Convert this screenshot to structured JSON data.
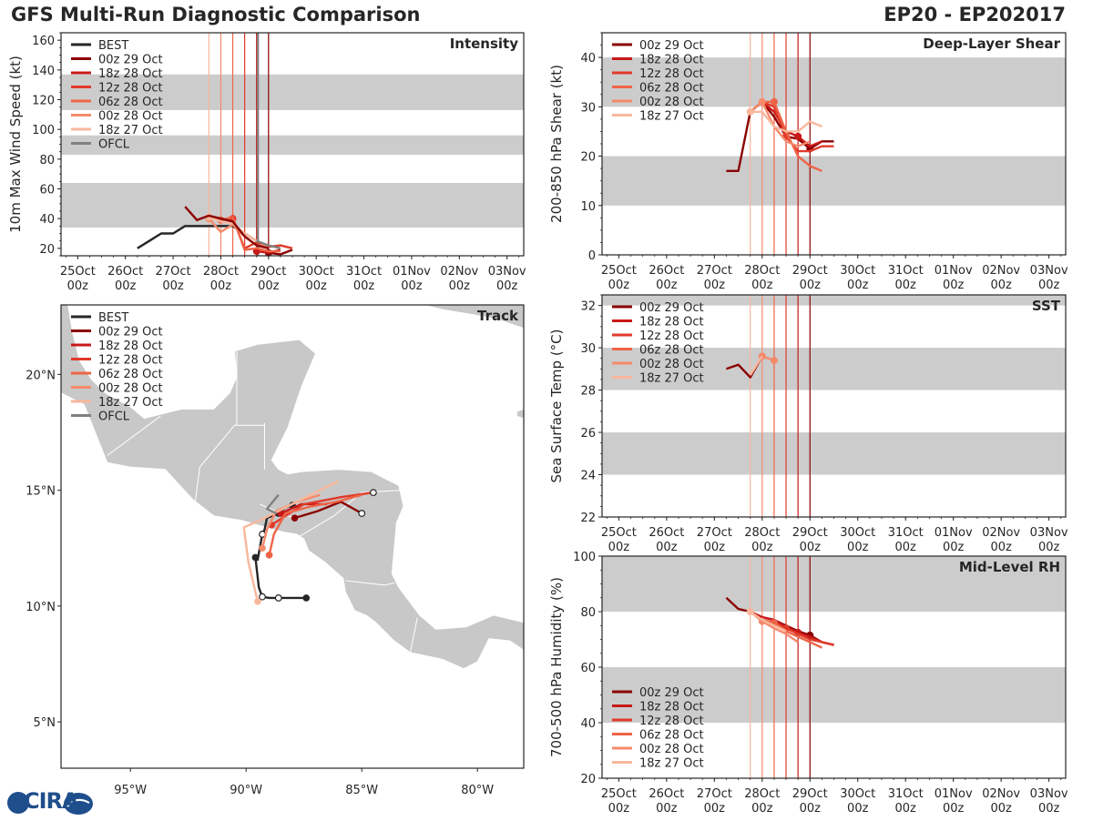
{
  "header": {
    "title_left": "GFS Multi-Run Diagnostic Comparison",
    "title_right": "EP20 - EP202017"
  },
  "logo": {
    "text": "CIRA"
  },
  "colors": {
    "best": "#262626",
    "ofcl": "#808080",
    "runs": [
      "#8b0000",
      "#c81818",
      "#e03a2a",
      "#ef6446",
      "#f58a6b",
      "#f9b79c"
    ],
    "band": "#cccccc"
  },
  "runs": [
    "00z 29 Oct",
    "18z 28 Oct",
    "12z 28 Oct",
    "06z 28 Oct",
    "00z 28 Oct",
    "18z 27 Oct"
  ],
  "time_ticks": [
    {
      "d": 0,
      "l1": "25Oct",
      "l2": "00z"
    },
    {
      "d": 1,
      "l1": "26Oct",
      "l2": "00z"
    },
    {
      "d": 2,
      "l1": "27Oct",
      "l2": "00z"
    },
    {
      "d": 3,
      "l1": "28Oct",
      "l2": "00z"
    },
    {
      "d": 4,
      "l1": "29Oct",
      "l2": "00z"
    },
    {
      "d": 5,
      "l1": "30Oct",
      "l2": "00z"
    },
    {
      "d": 6,
      "l1": "31Oct",
      "l2": "00z"
    },
    {
      "d": 7,
      "l1": "01Nov",
      "l2": "00z"
    },
    {
      "d": 8,
      "l1": "02Nov",
      "l2": "00z"
    },
    {
      "d": 9,
      "l1": "03Nov",
      "l2": "00z"
    }
  ],
  "chart_data": [
    {
      "name": "intensity",
      "type": "line",
      "title": "Intensity",
      "ylabel": "10m Max Wind Speed (kt)",
      "xlabel": "",
      "xlim": [
        -0.35,
        9.35
      ],
      "ylim": [
        15,
        165
      ],
      "yticks": [
        20,
        40,
        60,
        80,
        100,
        120,
        140,
        160
      ],
      "bands": [
        [
          34,
          64
        ],
        [
          83,
          96
        ],
        [
          113,
          137
        ]
      ],
      "init_lines": [
        2.75,
        3.0,
        3.25,
        3.5,
        3.75,
        4.0
      ],
      "ofcl_line": 3.75,
      "legend": [
        "BEST",
        "00z 29 Oct",
        "18z 28 Oct",
        "12z 28 Oct",
        "06z 28 Oct",
        "00z 28 Oct",
        "18z 27 Oct",
        "OFCL"
      ],
      "series": [
        {
          "name": "BEST",
          "kind": "best",
          "x": [
            1.25,
            1.5,
            1.75,
            2.0,
            2.25,
            2.5,
            2.75,
            3.0,
            3.25,
            3.5,
            3.75,
            4.0
          ],
          "y": [
            20,
            25,
            30,
            30,
            35,
            35,
            35,
            35,
            35,
            30,
            25,
            20
          ],
          "markers": []
        },
        {
          "name": "00z 29 Oct",
          "kind": "run",
          "ci": 0,
          "x": [
            4.0,
            4.25,
            4.5
          ],
          "y": [
            17,
            16,
            19
          ],
          "markers": [
            4.0
          ]
        },
        {
          "name": "18z 28 Oct",
          "kind": "run",
          "ci": 1,
          "x": [
            3.75,
            4.0,
            4.25
          ],
          "y": [
            18,
            17,
            19
          ],
          "markers": [
            3.75
          ]
        },
        {
          "name": "12z 28 Oct",
          "kind": "run",
          "ci": 2,
          "x": [
            3.25,
            3.5,
            3.75,
            4.0,
            4.25,
            4.5
          ],
          "y": [
            40,
            20,
            24,
            21,
            22,
            20
          ],
          "markers": [
            3.25
          ]
        },
        {
          "name": "06z 28 Oct",
          "kind": "run",
          "ci": 3,
          "x": [
            3.0,
            3.25,
            3.5,
            3.75,
            4.0,
            4.25
          ],
          "y": [
            39,
            41,
            19,
            20,
            18,
            18
          ],
          "markers": [
            3.0
          ]
        },
        {
          "name": "00z 28 Oct",
          "kind": "run",
          "ci": 4,
          "x": [
            2.75,
            3.0,
            3.25,
            3.5,
            3.75,
            4.0
          ],
          "y": [
            40,
            31,
            36,
            28,
            22,
            22
          ],
          "markers": [
            2.75
          ]
        },
        {
          "name": "18z 27 Oct",
          "kind": "run",
          "ci": 5,
          "x": [
            2.75,
            3.0,
            3.25,
            3.5,
            3.75
          ],
          "y": [
            41,
            38,
            37,
            30,
            25
          ],
          "markers": [
            2.75
          ]
        },
        {
          "name": "early run",
          "kind": "run",
          "ci": 0,
          "x": [
            2.25,
            2.5,
            2.75,
            3.0,
            3.25,
            3.5,
            3.75,
            4.0
          ],
          "y": [
            48,
            39,
            42,
            40,
            38,
            28,
            22,
            20
          ],
          "markers": []
        },
        {
          "name": "OFCL",
          "kind": "ofcl",
          "x": [
            3.75,
            4.0,
            4.25
          ],
          "y": [
            25,
            22,
            20
          ],
          "markers": []
        }
      ]
    },
    {
      "name": "shear",
      "type": "line",
      "title": "Deep-Layer Shear",
      "ylabel": "200-850 hPa Shear (kt)",
      "xlabel": "",
      "xlim": [
        -0.35,
        9.35
      ],
      "ylim": [
        0,
        45
      ],
      "yticks": [
        0,
        10,
        20,
        30,
        40
      ],
      "bands": [
        [
          10,
          20
        ],
        [
          30,
          40
        ]
      ],
      "init_lines": [
        2.75,
        3.0,
        3.25,
        3.5,
        3.75,
        4.0
      ],
      "legend": [
        "00z 29 Oct",
        "18z 28 Oct",
        "12z 28 Oct",
        "06z 28 Oct",
        "00z 28 Oct",
        "18z 27 Oct"
      ],
      "series": [
        {
          "name": "00z 29 Oct",
          "kind": "run",
          "ci": 0,
          "x": [
            2.25,
            2.5,
            2.75,
            3.0,
            3.25,
            3.5,
            3.75,
            4.0,
            4.25,
            4.5
          ],
          "y": [
            17,
            17,
            29,
            31,
            28,
            24,
            23.5,
            21.5,
            23,
            23
          ],
          "markers": [
            4.0
          ]
        },
        {
          "name": "18z 28 Oct",
          "kind": "run",
          "ci": 1,
          "x": [
            2.75,
            3.0,
            3.25,
            3.5,
            3.75,
            4.0,
            4.25
          ],
          "y": [
            29,
            31,
            29,
            25,
            24,
            22,
            23
          ],
          "markers": [
            3.75
          ]
        },
        {
          "name": "12z 28 Oct",
          "kind": "run",
          "ci": 2,
          "x": [
            2.75,
            3.0,
            3.25,
            3.5,
            3.75,
            4.0,
            4.25,
            4.5
          ],
          "y": [
            29,
            31,
            30,
            24,
            21,
            21,
            22,
            22
          ],
          "markers": [
            3.5
          ]
        },
        {
          "name": "06z 28 Oct",
          "kind": "run",
          "ci": 3,
          "x": [
            3.0,
            3.25,
            3.5,
            3.75,
            4.0,
            4.25
          ],
          "y": [
            31,
            31,
            25,
            20,
            18,
            17
          ],
          "markers": [
            3.25
          ]
        },
        {
          "name": "00z 28 Oct",
          "kind": "run",
          "ci": 4,
          "x": [
            2.75,
            3.0,
            3.25,
            3.5,
            3.75,
            4.0
          ],
          "y": [
            29,
            31,
            26,
            23,
            22,
            23
          ],
          "markers": [
            3.0
          ]
        },
        {
          "name": "18z 27 Oct",
          "kind": "run",
          "ci": 5,
          "x": [
            2.75,
            3.0,
            3.25,
            3.5,
            3.75,
            4.0,
            4.25
          ],
          "y": [
            29,
            29,
            26,
            25,
            25,
            27,
            26
          ],
          "markers": [
            2.75
          ]
        }
      ]
    },
    {
      "name": "sst",
      "type": "line",
      "title": "SST",
      "ylabel": "Sea Surface Temp (°C)",
      "xlabel": "",
      "xlim": [
        -0.35,
        9.35
      ],
      "ylim": [
        22,
        32.5
      ],
      "yticks": [
        22,
        24,
        26,
        28,
        30,
        32
      ],
      "bands": [
        [
          24,
          26
        ],
        [
          28,
          30
        ],
        [
          32,
          34
        ]
      ],
      "init_lines": [
        2.75,
        3.0,
        3.25,
        3.5,
        3.75,
        4.0
      ],
      "legend": [
        "00z 29 Oct",
        "18z 28 Oct",
        "12z 28 Oct",
        "06z 28 Oct",
        "00z 28 Oct",
        "18z 27 Oct"
      ],
      "series": [
        {
          "name": "00z 29 Oct",
          "kind": "run",
          "ci": 0,
          "x": [
            2.25,
            2.5,
            2.75,
            3.0
          ],
          "y": [
            29.0,
            29.2,
            28.6,
            29.6
          ],
          "markers": []
        },
        {
          "name": "00z 28 Oct",
          "kind": "run",
          "ci": 4,
          "x": [
            3.0,
            3.25
          ],
          "y": [
            29.6,
            29.4
          ],
          "markers": [
            3.0,
            3.25
          ]
        },
        {
          "name": "18z 27 Oct",
          "kind": "run",
          "ci": 5,
          "x": [
            2.75,
            3.0
          ],
          "y": [
            28.7,
            29.6
          ],
          "markers": []
        }
      ]
    },
    {
      "name": "rh",
      "type": "line",
      "title": "Mid-Level RH",
      "ylabel": "700-500 hPa Humidity (%)",
      "xlabel": "",
      "xlim": [
        -0.35,
        9.35
      ],
      "ylim": [
        20,
        100
      ],
      "yticks": [
        20,
        40,
        60,
        80,
        100
      ],
      "bands": [
        [
          40,
          60
        ],
        [
          80,
          100
        ]
      ],
      "init_lines": [
        2.75,
        3.0,
        3.25,
        3.5,
        3.75,
        4.0
      ],
      "legend": [
        "00z 29 Oct",
        "18z 28 Oct",
        "12z 28 Oct",
        "06z 28 Oct",
        "00z 28 Oct",
        "18z 27 Oct"
      ],
      "series": [
        {
          "name": "00z 29 Oct",
          "kind": "run",
          "ci": 0,
          "x": [
            2.25,
            2.5,
            2.75,
            3.0,
            3.25,
            3.5,
            3.75,
            4.0,
            4.25,
            4.5
          ],
          "y": [
            85,
            81,
            80,
            78,
            77,
            75,
            73,
            71.5,
            69,
            68
          ],
          "markers": [
            4.0
          ]
        },
        {
          "name": "18z 28 Oct",
          "kind": "run",
          "ci": 1,
          "x": [
            2.75,
            3.0,
            3.25,
            3.5,
            3.75,
            4.0,
            4.25,
            4.5
          ],
          "y": [
            80,
            78,
            77,
            74.5,
            72.5,
            71,
            69,
            68
          ],
          "markers": [
            3.75
          ]
        },
        {
          "name": "12z 28 Oct",
          "kind": "run",
          "ci": 2,
          "x": [
            2.75,
            3.0,
            3.25,
            3.5,
            3.75,
            4.0,
            4.25,
            4.5
          ],
          "y": [
            80,
            77,
            76,
            74,
            72,
            70,
            69,
            68
          ],
          "markers": [
            3.5
          ]
        },
        {
          "name": "06z 28 Oct",
          "kind": "run",
          "ci": 3,
          "x": [
            2.75,
            3.0,
            3.25,
            3.5,
            3.75,
            4.0,
            4.25
          ],
          "y": [
            80,
            77,
            76,
            73,
            71,
            69,
            67
          ],
          "markers": [
            3.25
          ]
        },
        {
          "name": "00z 28 Oct",
          "kind": "run",
          "ci": 4,
          "x": [
            2.75,
            3.0,
            3.25,
            3.5,
            3.75
          ],
          "y": [
            80,
            76.5,
            74,
            72,
            69
          ],
          "markers": [
            3.0
          ]
        },
        {
          "name": "18z 27 Oct",
          "kind": "run",
          "ci": 5,
          "x": [
            2.75,
            3.0,
            3.25,
            3.5
          ],
          "y": [
            80,
            77,
            75,
            73
          ],
          "markers": [
            2.75
          ]
        }
      ]
    },
    {
      "name": "track",
      "type": "line",
      "title": "Track",
      "xlabel": "longitude",
      "ylabel": "latitude",
      "xlim": [
        -98,
        -78
      ],
      "ylim": [
        3,
        23
      ],
      "xticks": [
        {
          "v": -95,
          "l": "95°W"
        },
        {
          "v": -90,
          "l": "90°W"
        },
        {
          "v": -85,
          "l": "85°W"
        },
        {
          "v": -80,
          "l": "80°W"
        }
      ],
      "yticks": [
        {
          "v": 5,
          "l": "5°N"
        },
        {
          "v": 10,
          "l": "10°N"
        },
        {
          "v": 15,
          "l": "15°N"
        },
        {
          "v": 20,
          "l": "20°N"
        }
      ],
      "legend": [
        "BEST",
        "00z 29 Oct",
        "18z 28 Oct",
        "12z 28 Oct",
        "06z 28 Oct",
        "00z 28 Oct",
        "18z 27 Oct",
        "OFCL"
      ],
      "land_color": "#c8c8c8",
      "series": [
        {
          "name": "BEST",
          "kind": "best",
          "lon": [
            -87.4,
            -88.0,
            -88.6,
            -89.0,
            -89.3,
            -89.45,
            -89.6,
            -89.5,
            -89.3,
            -89.2,
            -89.1,
            -88.6,
            -88.3,
            -88.0
          ],
          "lat": [
            10.35,
            10.35,
            10.35,
            10.35,
            10.4,
            10.8,
            12.1,
            12.0,
            13.1,
            13.3,
            13.8,
            14.0,
            14.25,
            14.35
          ],
          "filled": [
            0,
            6,
            11,
            13
          ],
          "hollow": [
            2,
            4,
            8
          ]
        },
        {
          "name": "00z 29 Oct",
          "kind": "run",
          "ci": 0,
          "lon": [
            -87.9,
            -86.9,
            -85.9,
            -85.0
          ],
          "lat": [
            13.8,
            14.1,
            14.5,
            14.0
          ],
          "filled": [
            0
          ],
          "hollow": [
            3
          ]
        },
        {
          "name": "18z 28 Oct",
          "kind": "run",
          "ci": 1,
          "lon": [
            -88.5,
            -87.6,
            -86.5
          ],
          "lat": [
            14.0,
            14.4,
            14.4
          ],
          "filled": [
            0
          ],
          "hollow": []
        },
        {
          "name": "12z 28 Oct",
          "kind": "run",
          "ci": 2,
          "lon": [
            -88.9,
            -87.5,
            -85.9,
            -84.5
          ],
          "lat": [
            13.5,
            14.4,
            14.7,
            14.9
          ],
          "filled": [
            0
          ],
          "hollow": [
            3
          ]
        },
        {
          "name": "06z 28 Oct",
          "kind": "run",
          "ci": 3,
          "lon": [
            -89.0,
            -88.8,
            -88.3,
            -87.2,
            -86.1,
            -85.0
          ],
          "lat": [
            12.2,
            13.1,
            14.0,
            14.3,
            14.5,
            14.8
          ],
          "filled": [
            0
          ],
          "hollow": []
        },
        {
          "name": "00z 28 Oct",
          "kind": "run",
          "ci": 4,
          "lon": [
            -89.3,
            -89.1,
            -88.7,
            -87.8,
            -86.8
          ],
          "lat": [
            12.5,
            13.3,
            14.1,
            14.5,
            14.8
          ],
          "filled": [
            0
          ],
          "hollow": []
        },
        {
          "name": "18z 27 Oct",
          "kind": "run",
          "ci": 5,
          "lon": [
            -89.5,
            -89.9,
            -90.1,
            -89.4,
            -88.2,
            -87.0,
            -86.0
          ],
          "lat": [
            10.2,
            11.9,
            13.4,
            13.7,
            14.3,
            14.9,
            15.4
          ],
          "filled": [
            0
          ],
          "hollow": []
        },
        {
          "name": "OFCL",
          "kind": "ofcl",
          "lon": [
            -88.7,
            -88.9,
            -89.1,
            -88.6
          ],
          "lat": [
            14.0,
            14.1,
            14.2,
            14.8
          ],
          "filled": [],
          "hollow": []
        }
      ]
    }
  ]
}
